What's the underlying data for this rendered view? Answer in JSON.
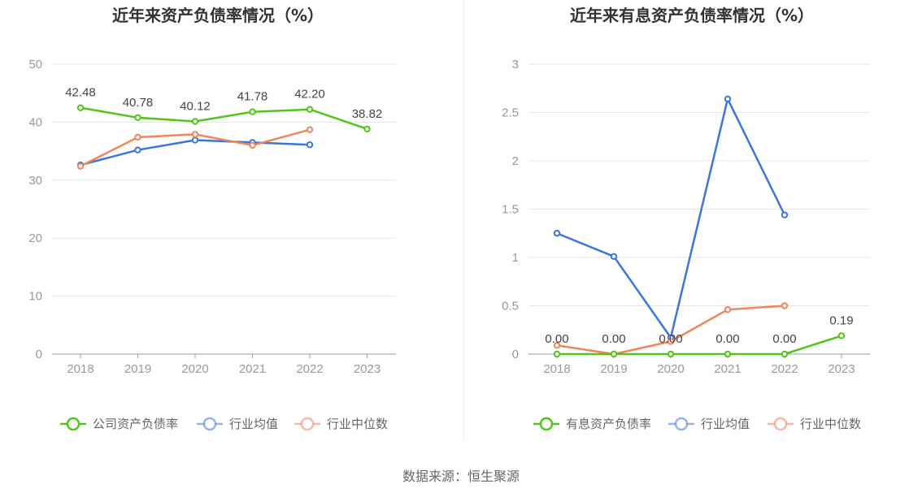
{
  "source_note": "数据来源：恒生聚源",
  "chart_data": [
    {
      "type": "line",
      "title": "近年来资产负债率情况（%）",
      "categories": [
        "2018",
        "2019",
        "2020",
        "2021",
        "2022",
        "2023"
      ],
      "ylim": [
        0,
        50
      ],
      "yticks": [
        0,
        10,
        20,
        30,
        40,
        50
      ],
      "ytick_labels": [
        "0",
        "10",
        "20",
        "30",
        "40",
        "50"
      ],
      "grid": true,
      "legend_position": "bottom",
      "series": [
        {
          "name": "公司资产负债率",
          "color": "#52c41a",
          "values": [
            42.48,
            40.78,
            40.12,
            41.78,
            42.2,
            38.82
          ],
          "labels": [
            "42.48",
            "40.78",
            "40.12",
            "41.78",
            "42.20",
            "38.82"
          ]
        },
        {
          "name": "行业均值",
          "color": "#3a75e0",
          "values": [
            32.6,
            35.2,
            36.9,
            36.5,
            36.1,
            null
          ]
        },
        {
          "name": "行业中位数",
          "color": "#f0845a",
          "values": [
            32.4,
            37.4,
            37.9,
            36.0,
            38.7,
            null
          ]
        }
      ]
    },
    {
      "type": "line",
      "title": "近年来有息资产负债率情况（%）",
      "categories": [
        "2018",
        "2019",
        "2020",
        "2021",
        "2022",
        "2023"
      ],
      "ylim": [
        0,
        3
      ],
      "yticks": [
        0,
        0.5,
        1,
        1.5,
        2,
        2.5,
        3
      ],
      "ytick_labels": [
        "0",
        "0.5",
        "1",
        "1.5",
        "2",
        "2.5",
        "3"
      ],
      "grid": true,
      "legend_position": "bottom",
      "series": [
        {
          "name": "有息资产负债率",
          "color": "#52c41a",
          "values": [
            0.0,
            0.0,
            0.0,
            0.0,
            0.0,
            0.19
          ],
          "labels": [
            "0.00",
            "0.00",
            "0.00",
            "0.00",
            "0.00",
            "0.19"
          ]
        },
        {
          "name": "行业均值",
          "color": "#3a75e0",
          "values": [
            1.25,
            1.01,
            0.17,
            2.64,
            1.44,
            null
          ]
        },
        {
          "name": "行业中位数",
          "color": "#f0845a",
          "values": [
            0.09,
            0.0,
            0.13,
            0.46,
            0.5,
            null
          ]
        }
      ]
    }
  ]
}
